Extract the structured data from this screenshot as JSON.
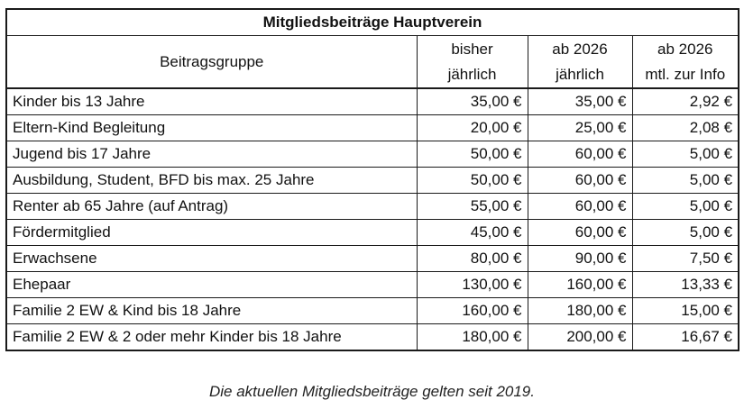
{
  "table": {
    "title": "Mitgliedsbeiträge Hauptverein",
    "headers": {
      "group": "Beitragsgruppe",
      "prev_line1": "bisher",
      "prev_line2": "jährlich",
      "new_line1": "ab 2026",
      "new_line2": "jährlich",
      "monthly_line1": "ab 2026",
      "monthly_line2": "mtl. zur Info"
    },
    "rows": [
      {
        "group": "Kinder bis 13 Jahre",
        "prev": "35,00 €",
        "new": "35,00 €",
        "monthly": "2,92 €"
      },
      {
        "group": "Eltern-Kind Begleitung",
        "prev": "20,00 €",
        "new": "25,00 €",
        "monthly": "2,08 €"
      },
      {
        "group": "Jugend bis 17 Jahre",
        "prev": "50,00 €",
        "new": "60,00 €",
        "monthly": "5,00 €"
      },
      {
        "group": "Ausbildung, Student, BFD bis max. 25 Jahre",
        "prev": "50,00 €",
        "new": "60,00 €",
        "monthly": "5,00 €"
      },
      {
        "group": "Renter ab 65 Jahre (auf Antrag)",
        "prev": "55,00 €",
        "new": "60,00 €",
        "monthly": "5,00 €"
      },
      {
        "group": "Fördermitglied",
        "prev": "45,00 €",
        "new": "60,00 €",
        "monthly": "5,00 €"
      },
      {
        "group": "Erwachsene",
        "prev": "80,00 €",
        "new": "90,00 €",
        "monthly": "7,50 €"
      },
      {
        "group": "Ehepaar",
        "prev": "130,00 €",
        "new": "160,00 €",
        "monthly": "13,33 €"
      },
      {
        "group": "Familie 2 EW & Kind bis 18 Jahre",
        "prev": "160,00 €",
        "new": "180,00 €",
        "monthly": "15,00 €"
      },
      {
        "group": "Familie 2 EW & 2 oder mehr Kinder bis 18 Jahre",
        "prev": "180,00 €",
        "new": "200,00 €",
        "monthly": "16,67 €"
      }
    ]
  },
  "footnote": "Die aktuellen Mitgliedsbeiträge gelten seit 2019."
}
